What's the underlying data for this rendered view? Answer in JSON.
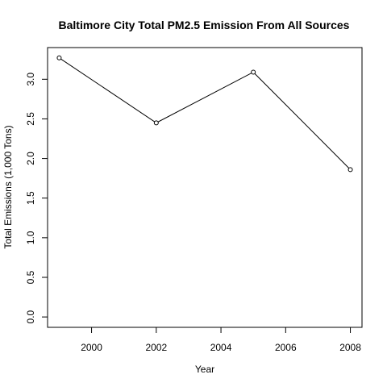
{
  "chart_data": {
    "type": "line",
    "title": "Baltimore City Total PM2.5 Emission From All Sources",
    "xlabel": "Year",
    "ylabel": "Total Emissions (1,000 Tons)",
    "x": [
      1999,
      2002,
      2005,
      2008
    ],
    "series": [
      {
        "values": [
          3.27,
          2.45,
          3.09,
          1.86
        ]
      }
    ],
    "xlim": [
      1998.64,
      2008.36
    ],
    "ylim": [
      -0.131,
      3.4
    ],
    "xticks": [
      2000,
      2002,
      2004,
      2006,
      2008
    ],
    "xtick_labels": [
      "2000",
      "2002",
      "2004",
      "2006",
      "2008"
    ],
    "yticks": [
      0.0,
      0.5,
      1.0,
      1.5,
      2.0,
      2.5,
      3.0
    ],
    "ytick_labels": [
      "0.0",
      "0.5",
      "1.0",
      "1.5",
      "2.0",
      "2.5",
      "3.0"
    ],
    "marker": "open-circle",
    "grid": false,
    "legend": "none",
    "colors": {
      "line": "#000000",
      "background": "#ffffff"
    }
  }
}
